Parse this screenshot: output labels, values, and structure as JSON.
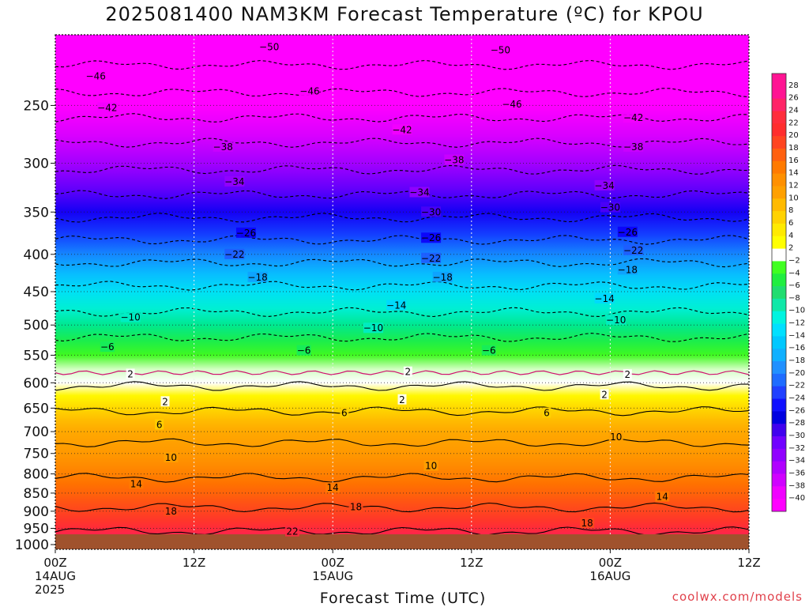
{
  "chart_data": {
    "type": "heatmap",
    "title": "2025081400 NAM3KM Forecast Temperature (ºC) for KPOU",
    "xlabel": "Forecast Time (UTC)",
    "ylabel": "",
    "y_scale": "log",
    "y_inverted": true,
    "ylim": [
      1015,
      200
    ],
    "y_ticks": [
      250,
      300,
      350,
      400,
      450,
      500,
      550,
      600,
      650,
      700,
      750,
      800,
      850,
      900,
      950,
      1000
    ],
    "x_range_hours": [
      0,
      60
    ],
    "x_ticks": [
      {
        "hour": 0,
        "lines": [
          "00Z",
          "14AUG",
          "2025"
        ]
      },
      {
        "hour": 12,
        "lines": [
          "12Z"
        ]
      },
      {
        "hour": 24,
        "lines": [
          "00Z",
          "15AUG"
        ]
      },
      {
        "hour": 36,
        "lines": [
          "12Z"
        ]
      },
      {
        "hour": 48,
        "lines": [
          "00Z",
          "16AUG"
        ]
      },
      {
        "hour": 60,
        "lines": [
          "12Z"
        ]
      }
    ],
    "grid": true,
    "profile": [
      {
        "p": 200,
        "t": -54
      },
      {
        "p": 225,
        "t": -49
      },
      {
        "p": 250,
        "t": -44
      },
      {
        "p": 275,
        "t": -39
      },
      {
        "p": 300,
        "t": -35
      },
      {
        "p": 325,
        "t": -31
      },
      {
        "p": 350,
        "t": -27
      },
      {
        "p": 375,
        "t": -23
      },
      {
        "p": 400,
        "t": -19.5
      },
      {
        "p": 425,
        "t": -16
      },
      {
        "p": 450,
        "t": -13
      },
      {
        "p": 475,
        "t": -10.5
      },
      {
        "p": 500,
        "t": -8
      },
      {
        "p": 525,
        "t": -5.5
      },
      {
        "p": 550,
        "t": -3
      },
      {
        "p": 575,
        "t": -0.5
      },
      {
        "p": 600,
        "t": 1.5
      },
      {
        "p": 625,
        "t": 3.5
      },
      {
        "p": 650,
        "t": 5.5
      },
      {
        "p": 675,
        "t": 7.5
      },
      {
        "p": 700,
        "t": 9
      },
      {
        "p": 725,
        "t": 10
      },
      {
        "p": 750,
        "t": 11
      },
      {
        "p": 775,
        "t": 12.3
      },
      {
        "p": 800,
        "t": 13.5
      },
      {
        "p": 825,
        "t": 14.8
      },
      {
        "p": 850,
        "t": 16
      },
      {
        "p": 875,
        "t": 17.3
      },
      {
        "p": 900,
        "t": 18.5
      },
      {
        "p": 925,
        "t": 20
      },
      {
        "p": 950,
        "t": 21.5
      },
      {
        "p": 975,
        "t": 23
      },
      {
        "p": 1000,
        "t": 24.5
      },
      {
        "p": 1015,
        "t": 25.5
      }
    ],
    "contour_labels": [
      {
        "v": "-50",
        "h": 18.5,
        "p": 208
      },
      {
        "v": "-50",
        "h": 38.5,
        "p": 210
      },
      {
        "v": "-46",
        "h": 3.5,
        "p": 228
      },
      {
        "v": "-46",
        "h": 22,
        "p": 239
      },
      {
        "v": "-46",
        "h": 39.5,
        "p": 249
      },
      {
        "v": "-42",
        "h": 4.5,
        "p": 252
      },
      {
        "v": "-42",
        "h": 30,
        "p": 270
      },
      {
        "v": "-42",
        "h": 50,
        "p": 260
      },
      {
        "v": "-38",
        "h": 14.5,
        "p": 285
      },
      {
        "v": "-38",
        "h": 34.5,
        "p": 297
      },
      {
        "v": "-38",
        "h": 50,
        "p": 285
      },
      {
        "v": "-34",
        "h": 15.5,
        "p": 318
      },
      {
        "v": "-34",
        "h": 31.5,
        "p": 329
      },
      {
        "v": "-34",
        "h": 47.5,
        "p": 322
      },
      {
        "v": "-30",
        "h": 32.5,
        "p": 350
      },
      {
        "v": "-30",
        "h": 48,
        "p": 345
      },
      {
        "v": "-26",
        "h": 16.5,
        "p": 374
      },
      {
        "v": "-26",
        "h": 32.5,
        "p": 380
      },
      {
        "v": "-26",
        "h": 49.5,
        "p": 373
      },
      {
        "v": "-22",
        "h": 15.5,
        "p": 400
      },
      {
        "v": "-22",
        "h": 32.5,
        "p": 405
      },
      {
        "v": "-22",
        "h": 50,
        "p": 395
      },
      {
        "v": "-18",
        "h": 17.5,
        "p": 430
      },
      {
        "v": "-18",
        "h": 33.5,
        "p": 430
      },
      {
        "v": "-18",
        "h": 49.5,
        "p": 420
      },
      {
        "v": "-14",
        "h": 29.5,
        "p": 470
      },
      {
        "v": "-14",
        "h": 47.5,
        "p": 460
      },
      {
        "v": "-10",
        "h": 6.5,
        "p": 488
      },
      {
        "v": "-10",
        "h": 27.5,
        "p": 505
      },
      {
        "v": "-10",
        "h": 48.5,
        "p": 492
      },
      {
        "v": "-6",
        "h": 4.5,
        "p": 536
      },
      {
        "v": "-6",
        "h": 21.5,
        "p": 542
      },
      {
        "v": "-6",
        "h": 37.5,
        "p": 542
      },
      {
        "v": "2",
        "h": 6.5,
        "p": 584
      },
      {
        "v": "2",
        "h": 30.5,
        "p": 580
      },
      {
        "v": "2",
        "h": 49.5,
        "p": 585
      },
      {
        "v": "2",
        "h": 9.5,
        "p": 637
      },
      {
        "v": "2",
        "h": 30,
        "p": 633
      },
      {
        "v": "2",
        "h": 47.5,
        "p": 623
      },
      {
        "v": "6",
        "h": 9,
        "p": 685
      },
      {
        "v": "6",
        "h": 25,
        "p": 660
      },
      {
        "v": "6",
        "h": 42.5,
        "p": 660
      },
      {
        "v": "10",
        "h": 10,
        "p": 760
      },
      {
        "v": "10",
        "h": 32.5,
        "p": 780
      },
      {
        "v": "10",
        "h": 48.5,
        "p": 712
      },
      {
        "v": "14",
        "h": 7,
        "p": 826
      },
      {
        "v": "14",
        "h": 24,
        "p": 836
      },
      {
        "v": "14",
        "h": 52.5,
        "p": 860
      },
      {
        "v": "18",
        "h": 10,
        "p": 900
      },
      {
        "v": "18",
        "h": 26,
        "p": 888
      },
      {
        "v": "18",
        "h": 46,
        "p": 935
      },
      {
        "v": "22",
        "h": 20.5,
        "p": 960
      }
    ],
    "colorbar": {
      "labels": [
        "28",
        "26",
        "24",
        "22",
        "20",
        "18",
        "16",
        "14",
        "12",
        "10",
        "8",
        "6",
        "4",
        "2",
        "-2",
        "-4",
        "-6",
        "-8",
        "-10",
        "-12",
        "-14",
        "-16",
        "-18",
        "-20",
        "-22",
        "-24",
        "-26",
        "-28",
        "-30",
        "-32",
        "-34",
        "-36",
        "-38",
        "-40"
      ],
      "colors": [
        "#ff1493",
        "#ff1493",
        "#ff2468",
        "#ff2d3c",
        "#ff2d2d",
        "#ff4520",
        "#ff6010",
        "#ff7a00",
        "#ff9000",
        "#ffa000",
        "#ffba00",
        "#ffd200",
        "#ffea00",
        "#ffff00",
        "#ffffff",
        "#40ff20",
        "#20ee40",
        "#20dd70",
        "#10e8a8",
        "#00f4e0",
        "#00e0ff",
        "#00c8ff",
        "#10b0ff",
        "#2090ff",
        "#1e6cff",
        "#2040ff",
        "#1010ff",
        "#0000e0",
        "#4000ee",
        "#7000ff",
        "#9000ff",
        "#b000ff",
        "#d000ff",
        "#f000ff",
        "#ff00ff"
      ]
    },
    "ground_color": "#a0522d"
  },
  "credit": "coolwx.com/models"
}
